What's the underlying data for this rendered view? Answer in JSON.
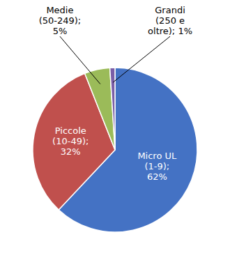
{
  "chart_data": {
    "type": "pie",
    "values": [
      62,
      32,
      5,
      1
    ],
    "value_labels": [
      "Micro UL\n(1-9);\n62%",
      "Piccole\n(10-49);\n32%",
      "Medie\n(50-249);\n5%",
      "Grandi\n(250 e\noltre); 1%"
    ],
    "colors": [
      "#4472C4",
      "#C0504D",
      "#9BBB59",
      "#7B5EA7"
    ],
    "data_labels": true
  }
}
